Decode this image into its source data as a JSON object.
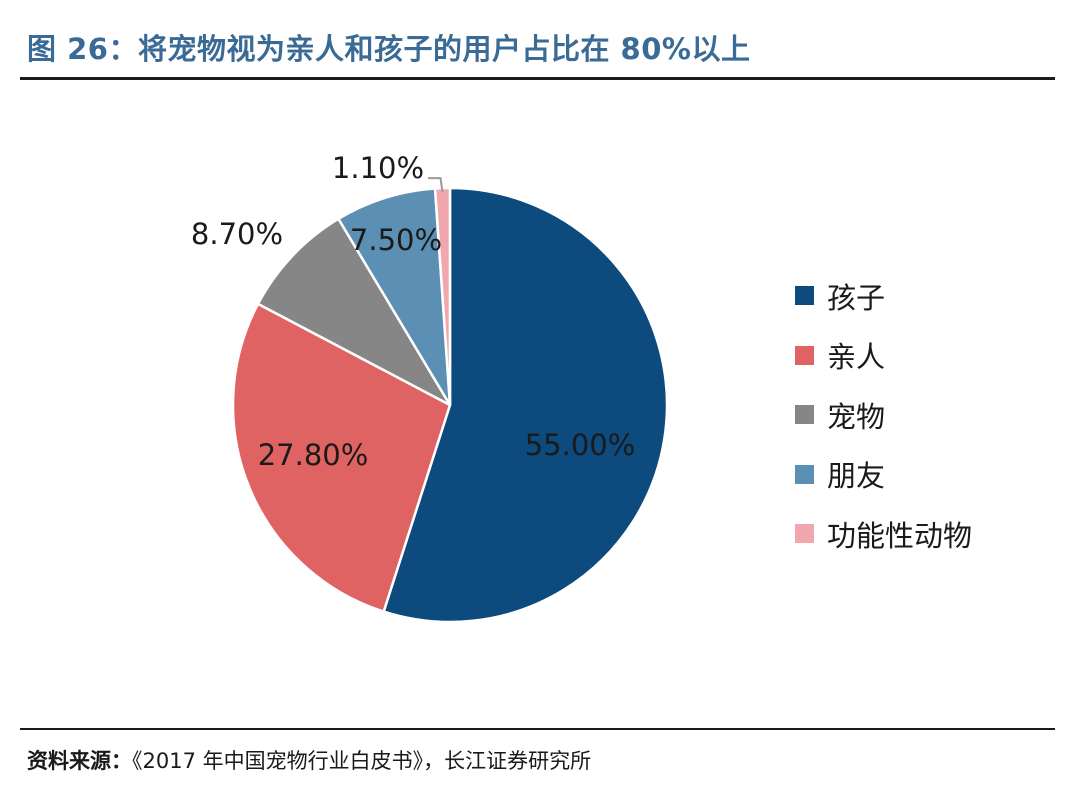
{
  "figure": {
    "title": "图 26：将宠物视为亲人和孩子的用户占比在 80%以上"
  },
  "source": {
    "label": "资料来源：",
    "text": "《2017 年中国宠物行业白皮书》，长江证券研究所"
  },
  "chart_data": {
    "type": "pie",
    "categories": [
      "孩子",
      "亲人",
      "宠物",
      "朋友",
      "功能性动物"
    ],
    "values": [
      55.0,
      27.8,
      8.7,
      7.5,
      1.1
    ],
    "data_labels": [
      "55.00%",
      "27.80%",
      "8.70%",
      "7.50%",
      "1.10%"
    ],
    "colors": [
      "#0d4a7e",
      "#e06363",
      "#868686",
      "#5b8fb4",
      "#f0a8ae"
    ],
    "label_colors": [
      "#1a1a1a",
      "#1a1a1a",
      "#1a1a1a",
      "#1a1a1a",
      "#1a1a1a"
    ],
    "start": "12 o'clock",
    "direction": "clockwise",
    "legend_position": "right",
    "title": "",
    "xlabel": "",
    "ylabel": ""
  }
}
